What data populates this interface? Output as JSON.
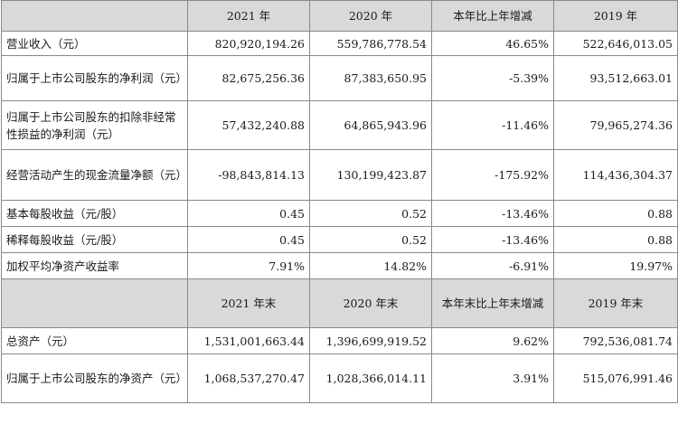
{
  "header1": [
    "",
    "2021 年",
    "2020 年",
    "本年比上年增减",
    "2019 年"
  ],
  "rows1": [
    {
      "label": "营业收入（元）",
      "values": [
        "820,920,194.26",
        "559,786,778.54",
        "46.65%",
        "522,646,013.05"
      ]
    },
    {
      "label": "归属于上市公司股东的净利润（元）",
      "values": [
        "82,675,256.36",
        "87,383,650.95",
        "-5.39%",
        "93,512,663.01"
      ]
    },
    {
      "label": "归属于上市公司股东的扣除非经常性损益的净利润（元）",
      "values": [
        "57,432,240.88",
        "64,865,943.96",
        "-11.46%",
        "79,965,274.36"
      ]
    },
    {
      "label": "经营活动产生的现金流量净额（元）",
      "values": [
        "-98,843,814.13",
        "130,199,423.87",
        "-175.92%",
        "114,436,304.37"
      ]
    },
    {
      "label": "基本每股收益（元/股）",
      "values": [
        "0.45",
        "0.52",
        "-13.46%",
        "0.88"
      ]
    },
    {
      "label": "稀释每股收益（元/股）",
      "values": [
        "0.45",
        "0.52",
        "-13.46%",
        "0.88"
      ]
    },
    {
      "label": "加权平均净资产收益率",
      "values": [
        "7.91%",
        "14.82%",
        "-6.91%",
        "19.97%"
      ]
    }
  ],
  "header2": [
    "",
    "2021 年末",
    "2020 年末",
    "本年末比上年末增减",
    "2019 年末"
  ],
  "rows2": [
    {
      "label": "总资产（元）",
      "values": [
        "1,531,001,663.44",
        "1,396,699,919.52",
        "9.62%",
        "792,536,081.74"
      ]
    },
    {
      "label": "归属于上市公司股东的净资产（元）",
      "values": [
        "1,068,537,270.47",
        "1,028,366,014.11",
        "3.91%",
        "515,076,991.46"
      ]
    }
  ]
}
